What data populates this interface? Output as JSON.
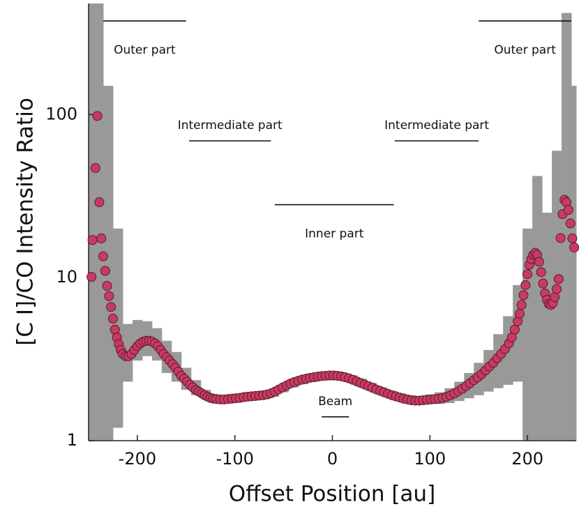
{
  "chart_data": {
    "type": "scatter",
    "x_label": "Offset Position [au]",
    "y_label": "[C I]/CO Intensity Ratio",
    "xlim": [
      -250,
      250
    ],
    "ylim": [
      1,
      480
    ],
    "xticks": [
      -200,
      -100,
      0,
      100,
      200
    ],
    "yticks": [
      1,
      10,
      100
    ],
    "log_y": true,
    "grid": false,
    "series": [
      {
        "color": "#c73b62",
        "x": [
          -247,
          -246,
          -243,
          -241,
          -239,
          -237,
          -235,
          -233,
          -231,
          -229,
          -227,
          -225,
          -223,
          -221,
          -219,
          -217,
          -215,
          -212,
          -209,
          -206,
          -203,
          -200,
          -197,
          -194,
          -191,
          -188,
          -185,
          -182,
          -179,
          -176,
          -173,
          -170,
          -167,
          -164,
          -161,
          -158,
          -155,
          -152,
          -149,
          -146,
          -143,
          -140,
          -137,
          -134,
          -131,
          -128,
          -125,
          -122,
          -119,
          -115,
          -111,
          -107,
          -103,
          -99,
          -95,
          -91,
          -87,
          -83,
          -79,
          -75,
          -71,
          -67,
          -63,
          -59,
          -55,
          -51,
          -47,
          -43,
          -39,
          -35,
          -31,
          -27,
          -23,
          -19,
          -15,
          -11,
          -7,
          -3,
          1,
          5,
          9,
          13,
          17,
          21,
          25,
          29,
          33,
          37,
          41,
          45,
          49,
          53,
          57,
          61,
          65,
          69,
          73,
          77,
          81,
          85,
          89,
          93,
          97,
          101,
          105,
          109,
          113,
          117,
          121,
          125,
          129,
          133,
          137,
          141,
          145,
          149,
          153,
          157,
          161,
          165,
          169,
          173,
          177,
          181,
          184,
          187,
          190,
          192,
          194,
          196,
          198,
          200,
          202,
          204,
          206,
          208,
          210,
          212,
          214,
          216,
          218,
          220,
          222,
          224,
          226,
          228,
          230,
          232,
          234,
          236,
          238,
          240,
          242,
          244,
          246,
          248
        ],
        "values": [
          10.1,
          17,
          47,
          98,
          29,
          17.4,
          13.5,
          11,
          8.9,
          7.7,
          6.6,
          5.6,
          4.8,
          4.3,
          3.9,
          3.6,
          3.4,
          3.3,
          3.3,
          3.4,
          3.6,
          3.8,
          3.95,
          4.05,
          4.1,
          4.1,
          4.05,
          3.95,
          3.8,
          3.6,
          3.4,
          3.25,
          3.1,
          2.95,
          2.8,
          2.65,
          2.5,
          2.4,
          2.3,
          2.2,
          2.12,
          2.05,
          2.0,
          1.95,
          1.9,
          1.86,
          1.83,
          1.81,
          1.8,
          1.79,
          1.79,
          1.8,
          1.81,
          1.82,
          1.83,
          1.85,
          1.86,
          1.87,
          1.88,
          1.89,
          1.9,
          1.92,
          1.95,
          2.0,
          2.06,
          2.12,
          2.18,
          2.24,
          2.29,
          2.33,
          2.37,
          2.4,
          2.43,
          2.45,
          2.47,
          2.49,
          2.5,
          2.51,
          2.51,
          2.5,
          2.48,
          2.45,
          2.41,
          2.36,
          2.31,
          2.26,
          2.21,
          2.16,
          2.11,
          2.06,
          2.02,
          1.98,
          1.94,
          1.9,
          1.87,
          1.84,
          1.81,
          1.79,
          1.77,
          1.76,
          1.76,
          1.77,
          1.78,
          1.79,
          1.8,
          1.81,
          1.83,
          1.86,
          1.9,
          1.95,
          2.01,
          2.08,
          2.16,
          2.25,
          2.35,
          2.45,
          2.56,
          2.7,
          2.85,
          3.0,
          3.2,
          3.4,
          3.65,
          3.95,
          4.3,
          4.8,
          5.4,
          6.0,
          6.8,
          7.8,
          9.0,
          10.5,
          12,
          13,
          13.8,
          14.2,
          13.8,
          12.5,
          10.8,
          9.2,
          8.0,
          7.3,
          6.9,
          6.8,
          7.0,
          7.6,
          8.5,
          9.8,
          17.5,
          24.5,
          30,
          29,
          26,
          21.5,
          17.4,
          15.3
        ]
      }
    ],
    "band": {
      "color": "#999999",
      "x": [
        -250,
        -240,
        -230,
        -220,
        -210,
        -200,
        -190,
        -180,
        -170,
        -160,
        -150,
        -140,
        -130,
        -120,
        -110,
        -100,
        -90,
        -80,
        -70,
        -60,
        -50,
        -40,
        -30,
        -20,
        -10,
        0,
        10,
        20,
        30,
        40,
        50,
        60,
        70,
        80,
        90,
        100,
        110,
        120,
        130,
        140,
        150,
        160,
        170,
        180,
        190,
        200,
        210,
        220,
        230,
        240,
        250
      ],
      "lower": [
        1,
        1,
        1,
        1.2,
        2.3,
        3.1,
        3.3,
        3.1,
        2.6,
        2.3,
        2.05,
        1.9,
        1.8,
        1.72,
        1.72,
        1.74,
        1.76,
        1.78,
        1.8,
        1.86,
        1.98,
        2.12,
        2.22,
        2.3,
        2.36,
        2.38,
        2.34,
        2.26,
        2.14,
        2.02,
        1.92,
        1.82,
        1.74,
        1.7,
        1.68,
        1.68,
        1.68,
        1.7,
        1.75,
        1.82,
        1.9,
        2.0,
        2.1,
        2.2,
        2.3,
        1,
        1,
        1,
        1,
        1,
        1
      ],
      "upper": [
        480,
        480,
        150,
        20,
        5.2,
        5.5,
        5.4,
        4.9,
        4.1,
        3.5,
        2.8,
        2.35,
        2.05,
        1.9,
        1.88,
        1.9,
        1.93,
        1.96,
        2.0,
        2.08,
        2.22,
        2.38,
        2.48,
        2.56,
        2.62,
        2.66,
        2.62,
        2.52,
        2.4,
        2.26,
        2.12,
        2.02,
        1.95,
        1.9,
        1.88,
        1.92,
        1.98,
        2.1,
        2.3,
        2.6,
        3.0,
        3.6,
        4.5,
        5.8,
        9,
        20,
        42,
        25,
        60,
        420,
        150
      ]
    },
    "annotations": [
      {
        "text": "Outer part",
        "x": [
          -235,
          -150
        ],
        "y": 375,
        "label_position": "below"
      },
      {
        "text": "Outer part",
        "x": [
          150,
          245
        ],
        "y": 375,
        "label_position": "below"
      },
      {
        "text": "Intermediate part",
        "x": [
          -147,
          -63
        ],
        "y": 69,
        "label_position": "above"
      },
      {
        "text": "Intermediate part",
        "x": [
          64,
          150
        ],
        "y": 69,
        "label_position": "above"
      },
      {
        "text": "Inner part",
        "x": [
          -59,
          63
        ],
        "y": 28,
        "label_position": "below"
      },
      {
        "text": "Beam",
        "x": [
          -11,
          17
        ],
        "y": 1.4,
        "label_position": "above"
      }
    ]
  }
}
